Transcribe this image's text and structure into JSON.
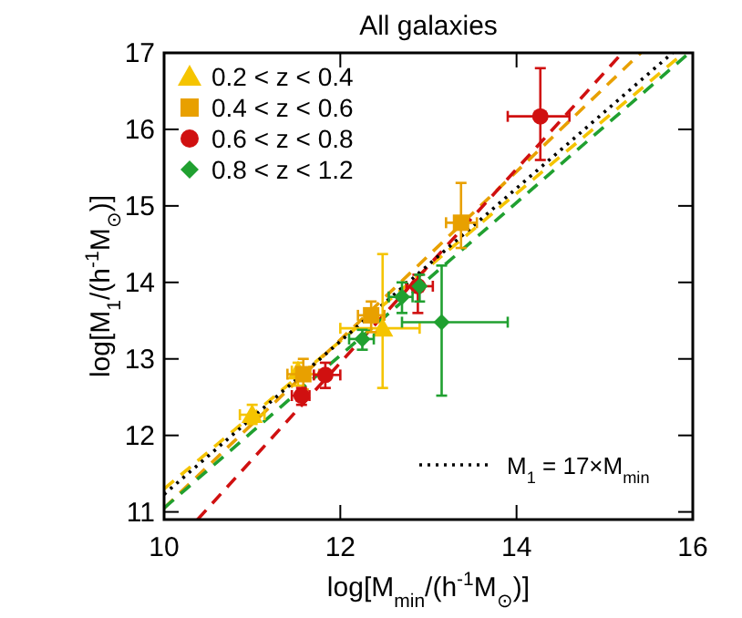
{
  "chart_data": {
    "type": "scatter",
    "title": "All galaxies",
    "xlabel": "log[M$_{min}$/(h$^{-1}$M$_{⊙}$)]",
    "ylabel": "log[M$_{1}$/(h$^{-1}$M$_{⊙}$)]",
    "xlim": [
      10,
      16
    ],
    "ylim": [
      10.9,
      17
    ],
    "xticks": [
      10,
      12,
      14,
      16
    ],
    "yticks": [
      11,
      12,
      13,
      14,
      15,
      16,
      17
    ],
    "grid": false,
    "legend": "top left",
    "series": [
      {
        "type": "line",
        "color": "#f5c400",
        "line_style": "dashed",
        "marker": "none",
        "x": [
          10,
          15.9
        ],
        "values": [
          11.3,
          17
        ]
      },
      {
        "type": "line",
        "color": "#e8a000",
        "line_style": "dashed",
        "marker": "none",
        "x": [
          10,
          15.41
        ],
        "values": [
          11.05,
          17
        ]
      },
      {
        "type": "line",
        "color": "#d01010",
        "line_style": "dashed",
        "marker": "none",
        "x": [
          10.38,
          15.2
        ],
        "values": [
          10.9,
          17
        ]
      },
      {
        "type": "line",
        "color": "#20a030",
        "line_style": "dashed",
        "marker": "none",
        "x": [
          10,
          15.96
        ],
        "values": [
          11.05,
          17
        ]
      },
      {
        "type": "line",
        "name": "M$_{1}$ = 17×M$_{min}$",
        "color": "#000000",
        "line_style": "dotted",
        "marker": "none",
        "x": [
          10,
          15.77
        ],
        "values": [
          11.23,
          17
        ]
      },
      {
        "name": "0.2 < z < 0.4",
        "color": "#f5c400",
        "marker": "triangle",
        "x": [
          11.0,
          11.52,
          12.48
        ],
        "values": [
          12.27,
          12.84,
          13.4
        ],
        "errors": [
          [
            12.15,
            12.4
          ],
          [
            12.65,
            12.95
          ],
          [
            12.62,
            14.37
          ]
        ],
        "xerrors": [
          [
            10.86,
            11.14
          ],
          [
            11.45,
            11.65
          ],
          [
            12.0,
            12.9
          ]
        ]
      },
      {
        "name": "0.4 < z < 0.6",
        "color": "#e8a000",
        "marker": "square",
        "x": [
          11.58,
          12.35,
          13.37
        ],
        "values": [
          12.8,
          13.57,
          14.78
        ],
        "errors": [
          [
            12.6,
            13.0
          ],
          [
            13.35,
            13.75
          ],
          [
            14.45,
            15.3
          ]
        ],
        "xerrors": [
          [
            11.4,
            11.76
          ],
          [
            12.2,
            12.5
          ],
          [
            13.2,
            13.55
          ]
        ]
      },
      {
        "name": "0.6 < z < 0.8",
        "color": "#d01010",
        "marker": "circle",
        "x": [
          11.56,
          11.83,
          12.88,
          14.27
        ],
        "values": [
          12.52,
          12.79,
          13.95,
          16.17
        ],
        "errors": [
          [
            12.4,
            12.62
          ],
          [
            12.62,
            12.95
          ],
          [
            13.6,
            14.1
          ],
          [
            15.6,
            16.8
          ]
        ],
        "xerrors": [
          [
            11.45,
            11.65
          ],
          [
            11.7,
            12.0
          ],
          [
            12.75,
            13.05
          ],
          [
            13.9,
            14.6
          ]
        ]
      },
      {
        "name": "0.8 < z < 1.2",
        "color": "#20a030",
        "marker": "diamond",
        "x": [
          12.25,
          12.7,
          12.9,
          13.15
        ],
        "values": [
          13.26,
          13.81,
          13.95,
          13.48
        ],
        "errors": [
          [
            13.12,
            13.38
          ],
          [
            13.6,
            14.0
          ],
          [
            13.75,
            14.1
          ],
          [
            12.52,
            14.22
          ]
        ],
        "xerrors": [
          [
            12.1,
            12.38
          ],
          [
            12.55,
            12.82
          ],
          null,
          [
            12.7,
            13.9
          ]
        ]
      }
    ]
  }
}
